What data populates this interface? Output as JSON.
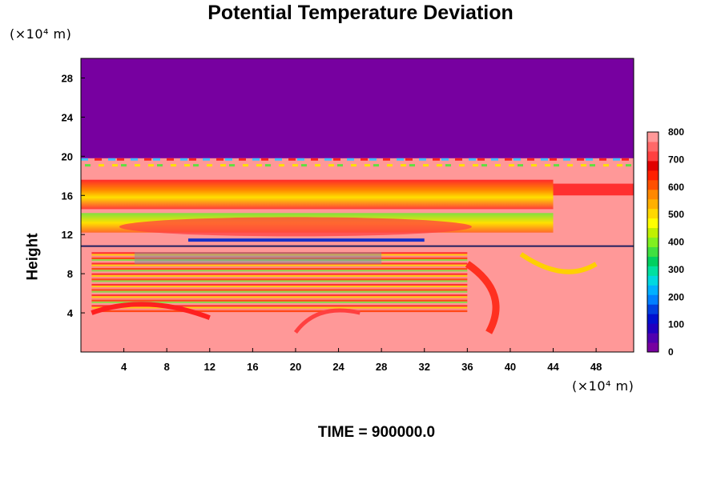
{
  "chart_data": {
    "type": "heatmap",
    "title": "Potential Temperature Deviation",
    "ylabel": "Height",
    "y_unit": "(×10⁴ m)",
    "x_unit": "(×10⁴ m)",
    "xlim": [
      0,
      51.5
    ],
    "ylim": [
      0,
      30
    ],
    "x_ticks": [
      "4",
      "8",
      "12",
      "16",
      "20",
      "24",
      "28",
      "32",
      "36",
      "40",
      "44",
      "48"
    ],
    "y_ticks": [
      "4",
      "8",
      "12",
      "16",
      "20",
      "24",
      "28"
    ],
    "colorbar": {
      "ticks": [
        "0",
        "100",
        "200",
        "300",
        "400",
        "500",
        "600",
        "700",
        "800"
      ],
      "range": [
        0,
        800
      ]
    },
    "footer": "TIME = 900000.0"
  },
  "colors": {
    "background_band": "#ff9898",
    "top_region": "#7700a0"
  }
}
